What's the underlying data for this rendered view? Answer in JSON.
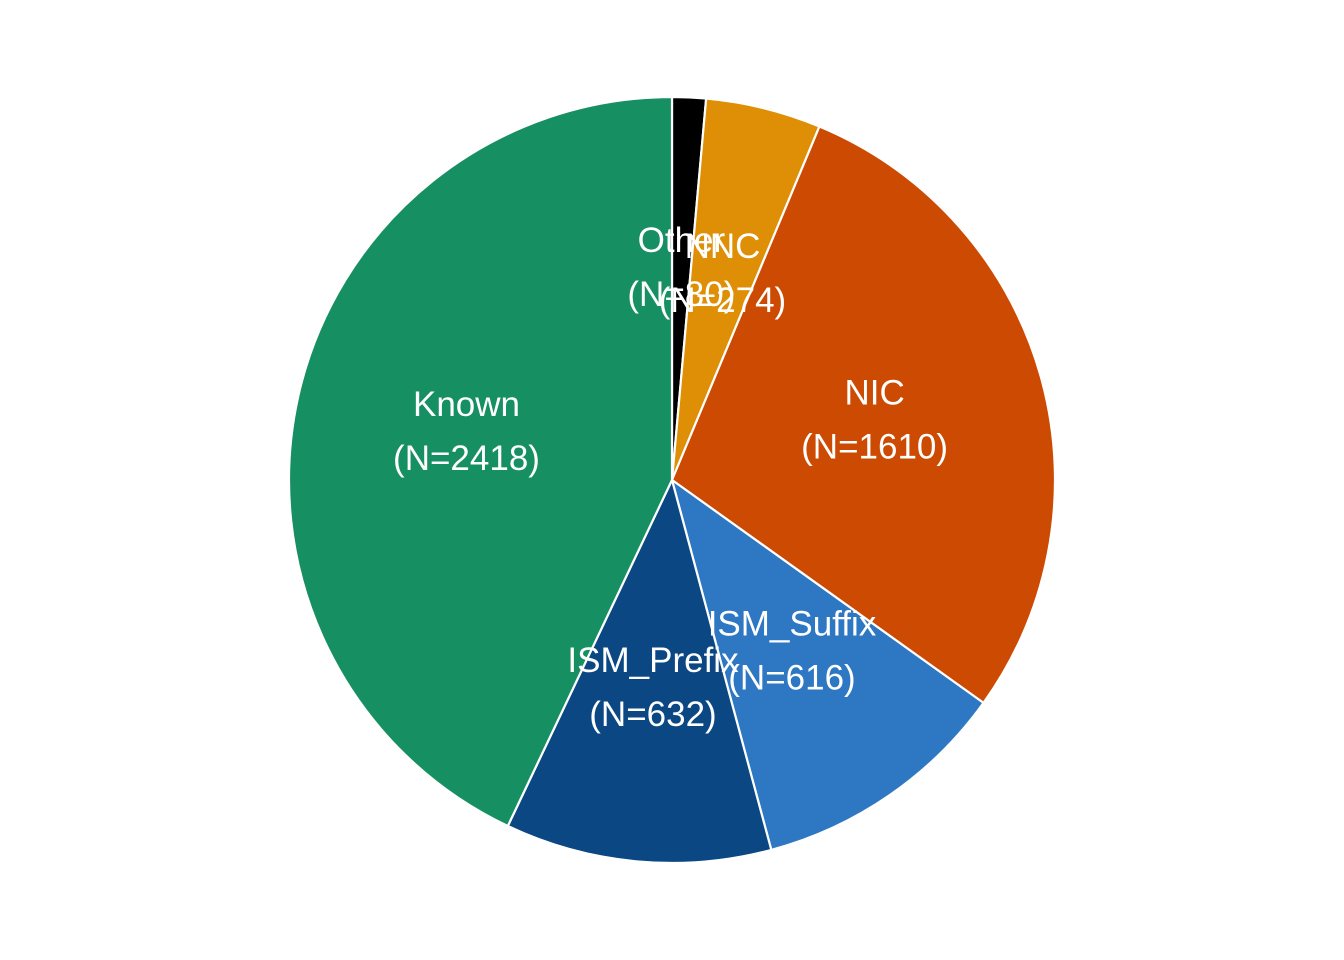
{
  "chart_data": {
    "type": "pie",
    "categories": [
      "Other",
      "NNC",
      "NIC",
      "ISM_Suffix",
      "ISM_Prefix",
      "Known"
    ],
    "values": [
      80,
      274,
      1610,
      616,
      632,
      2418
    ],
    "labels": [
      {
        "name": "Other",
        "count": "(N=80)"
      },
      {
        "name": "NNC",
        "count": "(N=274)"
      },
      {
        "name": "NIC",
        "count": "(N=1610)"
      },
      {
        "name": "ISM_Suffix",
        "count": "(N=616)"
      },
      {
        "name": "ISM_Prefix",
        "count": "(N=632)"
      },
      {
        "name": "Known",
        "count": "(N=2418)"
      }
    ],
    "colors": [
      "#000000",
      "#de8f05",
      "#cc4a02",
      "#2e77c3",
      "#0a4783",
      "#168f62"
    ],
    "start_angle": "top",
    "direction": "clockwise"
  }
}
